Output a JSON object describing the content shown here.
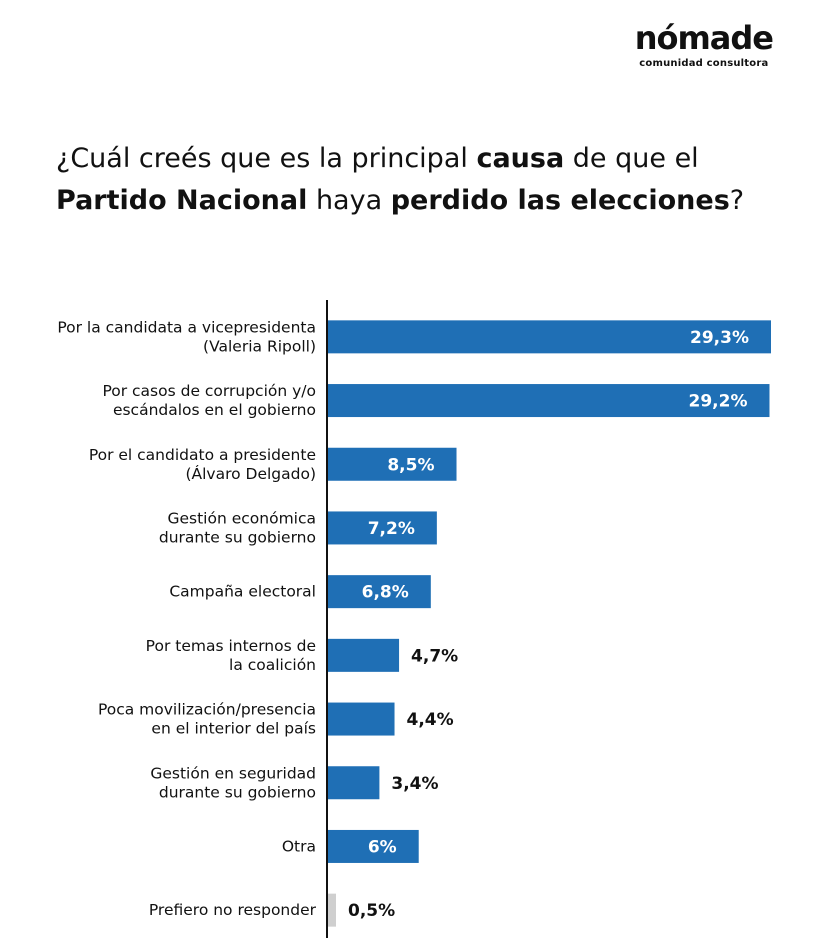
{
  "brand": {
    "name": "nómade",
    "tagline": "comunidad consultora"
  },
  "question": {
    "parts": [
      {
        "text": "¿Cuál creés que es la principal ",
        "bold": false
      },
      {
        "text": "causa",
        "bold": true
      },
      {
        "text": " de que el ",
        "bold": false
      },
      {
        "text": "Partido Nacional",
        "bold": true
      },
      {
        "text": " haya ",
        "bold": false
      },
      {
        "text": "perdido las elecciones",
        "bold": true
      },
      {
        "text": "?",
        "bold": false
      }
    ]
  },
  "colors": {
    "bar": "#1f6fb5",
    "bar_small": "#cfcfcf",
    "value_inside": "#ffffff",
    "value_outside": "#111111",
    "axis": "#111111"
  },
  "chart_data": {
    "type": "bar",
    "orientation": "horizontal",
    "categories": [
      [
        "Por la candidata a vicepresidenta",
        "(Valeria Ripoll)"
      ],
      [
        "Por casos de corrupción y/o",
        "escándalos en el gobierno"
      ],
      [
        "Por el candidato a presidente",
        "(Álvaro Delgado)"
      ],
      [
        "Gestión económica",
        "durante su gobierno"
      ],
      [
        "Campaña electoral"
      ],
      [
        "Por temas internos de",
        "la coalición"
      ],
      [
        "Poca movilización/presencia",
        "en el interior del país"
      ],
      [
        "Gestión en seguridad",
        "durante su gobierno"
      ],
      [
        "Otra"
      ],
      [
        "Prefiero no responder"
      ]
    ],
    "values": [
      29.3,
      29.2,
      8.5,
      7.2,
      6.8,
      4.7,
      4.4,
      3.4,
      6,
      0.5
    ],
    "value_labels": [
      "29,3%",
      "29,2%",
      "8,5%",
      "7,2%",
      "6,8%",
      "4,7%",
      "4,4%",
      "3,4%",
      "6%",
      "0,5%"
    ],
    "label_inside": [
      true,
      true,
      true,
      true,
      true,
      false,
      false,
      false,
      true,
      false
    ],
    "xlim": [
      0,
      29.3
    ],
    "grid": false,
    "legend": "none"
  }
}
